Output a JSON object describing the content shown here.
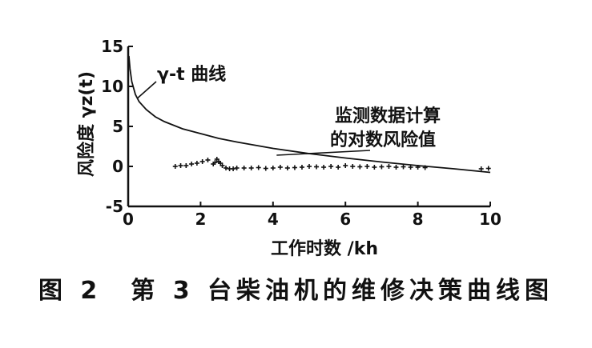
{
  "figure": {
    "caption": "图 2　第 3 台柴油机的维修决策曲线图"
  },
  "chart_data": {
    "type": "scatter",
    "xlabel": "工作时数 /kh",
    "ylabel": "风险度 γz(t)",
    "xlim": [
      0,
      10
    ],
    "ylim": [
      -5,
      15
    ],
    "xticks": [
      0,
      2,
      4,
      6,
      8,
      10
    ],
    "yticks": [
      -5,
      0,
      5,
      10,
      15
    ],
    "annotations": [
      {
        "text": "γ-t 曲线",
        "target_series": "curve"
      },
      {
        "text": "监测数据计算\n的对数风险值",
        "target_series": "points"
      }
    ],
    "series": [
      {
        "id": "curve",
        "type": "line",
        "x": [
          0.02,
          0.05,
          0.1,
          0.2,
          0.3,
          0.5,
          0.75,
          1,
          1.5,
          2,
          2.5,
          3,
          4,
          5,
          6,
          7,
          8,
          9,
          10
        ],
        "y": [
          13.8,
          12.2,
          10.6,
          9.0,
          8.1,
          7.1,
          6.2,
          5.6,
          4.7,
          4.1,
          3.5,
          3.05,
          2.25,
          1.6,
          1.05,
          0.55,
          0.1,
          -0.3,
          -0.75
        ]
      },
      {
        "id": "points",
        "type": "scatter",
        "x": [
          1.3,
          1.45,
          1.6,
          1.75,
          1.9,
          2.05,
          2.2,
          2.35,
          2.4,
          2.45,
          2.5,
          2.55,
          2.6,
          2.7,
          2.8,
          2.9,
          3.0,
          3.2,
          3.4,
          3.6,
          3.8,
          4.0,
          4.2,
          4.4,
          4.6,
          4.8,
          5.0,
          5.2,
          5.4,
          5.6,
          5.8,
          6.0,
          6.2,
          6.4,
          6.6,
          6.8,
          7.0,
          7.2,
          7.4,
          7.6,
          7.8,
          8.0,
          8.2,
          9.75,
          9.95
        ],
        "y": [
          0.0,
          0.1,
          0.1,
          0.3,
          0.4,
          0.6,
          0.8,
          0.3,
          0.5,
          0.9,
          0.6,
          0.4,
          0.1,
          -0.2,
          -0.3,
          -0.3,
          -0.2,
          -0.2,
          -0.2,
          -0.15,
          -0.25,
          -0.2,
          -0.1,
          -0.2,
          -0.15,
          -0.1,
          0.0,
          -0.05,
          -0.1,
          0.0,
          -0.1,
          0.1,
          0.0,
          -0.05,
          0.0,
          -0.1,
          -0.05,
          0.0,
          -0.1,
          -0.05,
          -0.1,
          -0.1,
          -0.15,
          -0.3,
          -0.25
        ]
      }
    ]
  }
}
